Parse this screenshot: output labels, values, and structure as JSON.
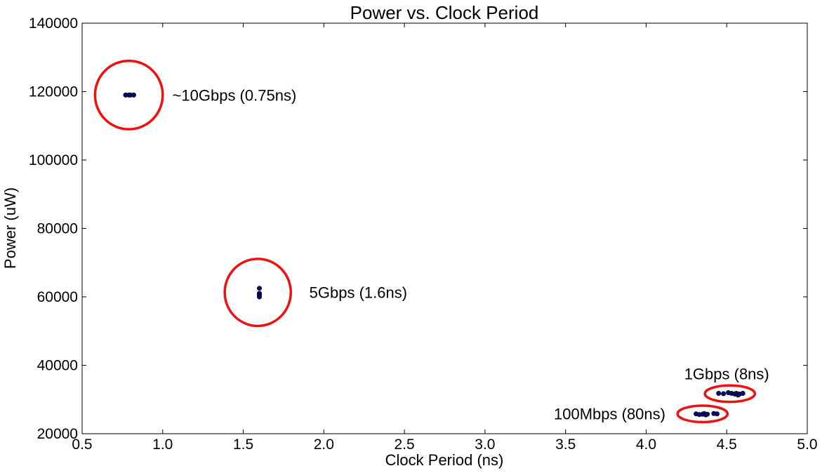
{
  "chart_data": {
    "type": "scatter",
    "title": "Power vs. Clock Period",
    "xlabel": "Clock Period (ns)",
    "ylabel": "Power (uW)",
    "xlim": [
      0.5,
      5.0
    ],
    "ylim": [
      20000,
      140000
    ],
    "x_ticks": [
      0.5,
      1.0,
      1.5,
      2.0,
      2.5,
      3.0,
      3.5,
      4.0,
      4.5,
      5.0
    ],
    "x_tick_labels": [
      "0.5",
      "1.0",
      "1.5",
      "2.0",
      "2.5",
      "3.0",
      "3.5",
      "4.0",
      "4.5",
      "5.0"
    ],
    "y_ticks": [
      20000,
      40000,
      60000,
      80000,
      100000,
      120000,
      140000
    ],
    "y_tick_labels": [
      "20000",
      "40000",
      "60000",
      "80000",
      "100000",
      "120000",
      "140000"
    ],
    "grid": false,
    "marker_color": "#0a0a6e",
    "highlight_color": "#ee1111",
    "series": [
      {
        "points": [
          [
            0.77,
            119000
          ],
          [
            0.79,
            119000
          ],
          [
            0.8,
            119000
          ],
          [
            0.82,
            119000
          ],
          [
            1.6,
            62500
          ],
          [
            1.6,
            61000
          ],
          [
            1.6,
            60500
          ],
          [
            1.6,
            60000
          ],
          [
            4.45,
            31800
          ],
          [
            4.48,
            31700
          ],
          [
            4.51,
            32000
          ],
          [
            4.53,
            31800
          ],
          [
            4.55,
            31600
          ],
          [
            4.56,
            31800
          ],
          [
            4.57,
            31300
          ],
          [
            4.58,
            31600
          ],
          [
            4.6,
            31800
          ],
          [
            4.31,
            25800
          ],
          [
            4.33,
            25600
          ],
          [
            4.35,
            25700
          ],
          [
            4.36,
            25900
          ],
          [
            4.37,
            25500
          ],
          [
            4.38,
            25700
          ],
          [
            4.42,
            25900
          ],
          [
            4.44,
            25800
          ]
        ]
      }
    ],
    "annotations": [
      {
        "text": "~10Gbps (0.75ns)",
        "center": [
          0.79,
          119000
        ],
        "rx": 0.21,
        "ry": 10000,
        "label_at": [
          1.06,
          119000
        ],
        "anchor": "start"
      },
      {
        "text": "5Gbps (1.6ns)",
        "center": [
          1.59,
          61300
        ],
        "rx": 0.205,
        "ry": 9800,
        "label_at": [
          1.91,
          61300
        ],
        "anchor": "start"
      },
      {
        "text": "1Gbps (8ns)",
        "center": [
          4.52,
          31700
        ],
        "rx": 0.155,
        "ry": 2400,
        "label_at": [
          4.5,
          37500
        ],
        "anchor": "middle"
      },
      {
        "text": "100Mbps (80ns)",
        "center": [
          4.35,
          25800
        ],
        "rx": 0.155,
        "ry": 2400,
        "label_at": [
          4.12,
          25800
        ],
        "anchor": "end"
      }
    ]
  }
}
